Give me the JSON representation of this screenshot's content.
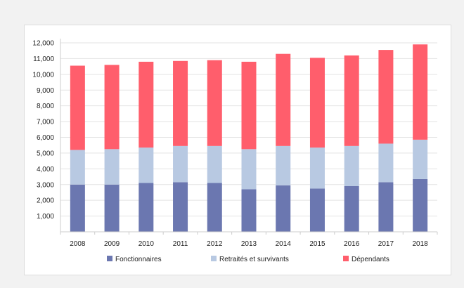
{
  "colors": {
    "fonctionnaires": "#6b77b0",
    "retraites": "#b8c9e2",
    "dependants": "#ff5e6c",
    "grid": "#e3e3e3",
    "axis": "#cccccc"
  },
  "chart_data": {
    "type": "bar",
    "stacked": true,
    "categories": [
      "2008",
      "2009",
      "2010",
      "2011",
      "2012",
      "2013",
      "2014",
      "2015",
      "2016",
      "2017",
      "2018"
    ],
    "series": [
      {
        "name": "Fonctionnaires",
        "values": [
          3000,
          3000,
          3100,
          3150,
          3100,
          2700,
          2950,
          2750,
          2900,
          3150,
          3350
        ]
      },
      {
        "name": "Retraités et survivants",
        "values": [
          2200,
          2250,
          2250,
          2300,
          2350,
          2550,
          2500,
          2600,
          2550,
          2450,
          2500
        ]
      },
      {
        "name": "Dépendants",
        "values": [
          5350,
          5350,
          5450,
          5400,
          5450,
          5550,
          5850,
          5700,
          5750,
          5950,
          6050
        ]
      }
    ],
    "yticks": [
      "1,000",
      "2,000",
      "3,000",
      "4,000",
      "5,000",
      "6,000",
      "7,000",
      "8,000",
      "9,000",
      "10,000",
      "11,000",
      "12,000"
    ],
    "ylim": [
      0,
      12000
    ],
    "grid": true,
    "legend_position": "bottom"
  }
}
